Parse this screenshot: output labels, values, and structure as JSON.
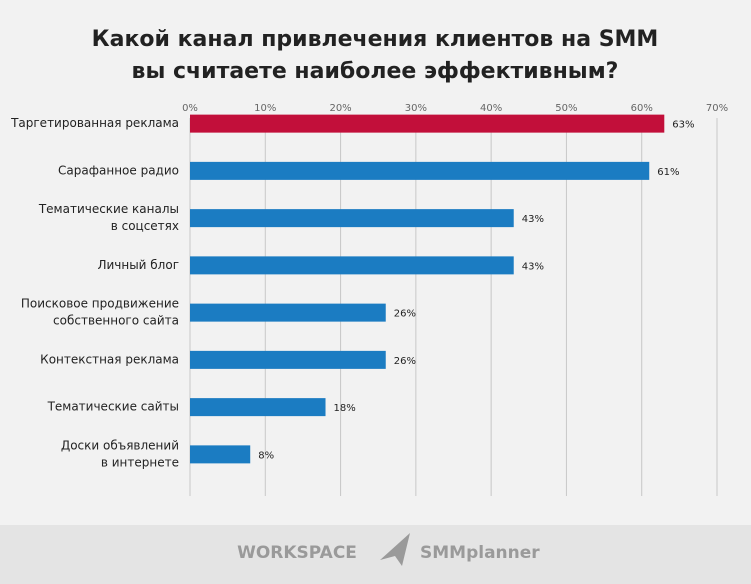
{
  "chart_data": {
    "type": "bar",
    "orientation": "horizontal",
    "title": [
      "Какой канал привлечения клиентов на SMM",
      "вы считаете наиболее эффективным?"
    ],
    "categories": [
      [
        "Таргетированная реклама"
      ],
      [
        "Сарафанное радио"
      ],
      [
        "Тематические каналы",
        "в соцсетях"
      ],
      [
        "Личный блог"
      ],
      [
        "Поисковое продвижение",
        "собственного сайта"
      ],
      [
        "Контекстная реклама"
      ],
      [
        "Тематические сайты"
      ],
      [
        "Доски объявлений",
        "в интернете"
      ]
    ],
    "values": [
      63,
      61,
      43,
      43,
      26,
      26,
      18,
      8
    ],
    "value_labels": [
      "63%",
      "61%",
      "43%",
      "43%",
      "26%",
      "26%",
      "18%",
      "8%"
    ],
    "colors": [
      "#c20f3a",
      "#1b7cc2",
      "#1b7cc2",
      "#1b7cc2",
      "#1b7cc2",
      "#1b7cc2",
      "#1b7cc2",
      "#1b7cc2"
    ],
    "xlim": [
      0,
      70
    ],
    "xticks": [
      {
        "value": 0,
        "label": "0%"
      },
      {
        "value": 10,
        "label": "10%"
      },
      {
        "value": 20,
        "label": "20%"
      },
      {
        "value": 30,
        "label": "30%"
      },
      {
        "value": 40,
        "label": "40%"
      },
      {
        "value": 50,
        "label": "50%"
      },
      {
        "value": 60,
        "label": "60%"
      },
      {
        "value": 70,
        "label": "70%"
      }
    ],
    "grid": true
  },
  "footer": {
    "brand_left": "WORKSPACE",
    "brand_right": "SMMplanner"
  }
}
